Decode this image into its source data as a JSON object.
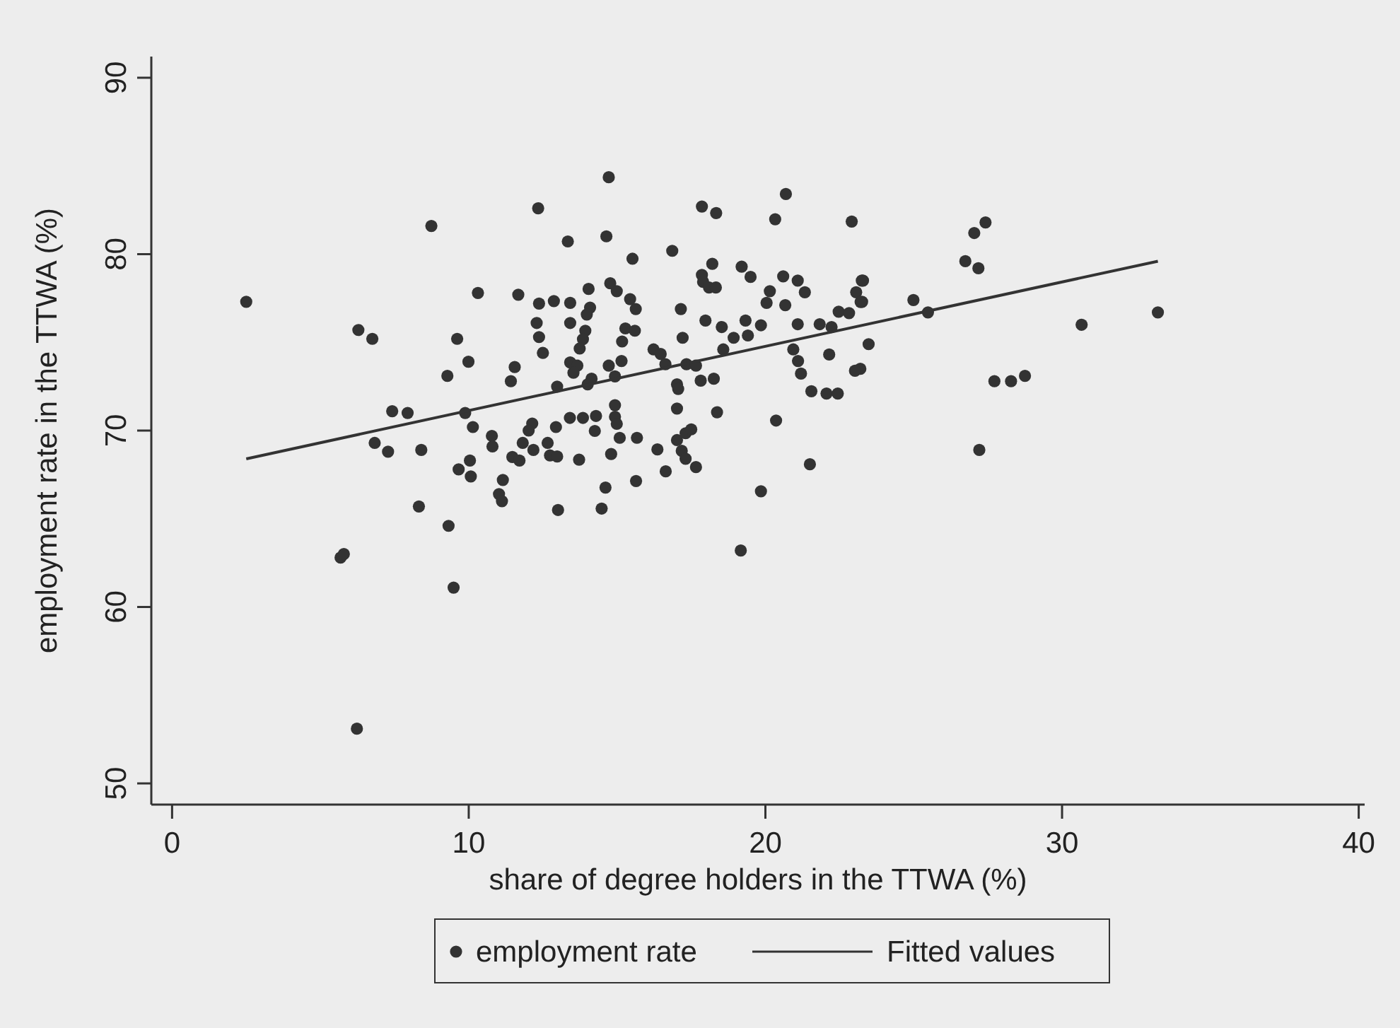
{
  "chart_data": {
    "type": "scatter",
    "xlabel": "share of degree holders in the TTWA (%)",
    "ylabel": "employment rate in the TTWA (%)",
    "xlim": [
      -0.7,
      40.2
    ],
    "ylim": [
      48.8,
      91.2
    ],
    "xticks": [
      0,
      10,
      20,
      30,
      40
    ],
    "yticks": [
      50,
      60,
      70,
      80,
      90
    ],
    "grid": false,
    "legend": "bottom",
    "series": [
      {
        "name": "employment rate",
        "marker": "circle",
        "color": "#333333",
        "x": [
          2.5,
          8.74,
          12.34,
          10.31,
          11.67,
          12.37,
          6.28,
          6.75,
          9.61,
          12.29,
          12.37,
          12.5,
          9.99,
          11.55,
          11.42,
          9.28,
          7.42,
          7.94,
          9.88,
          10.14,
          6.83,
          7.28,
          8.4,
          10.78,
          10.8,
          12.14,
          12.02,
          11.82,
          11.47,
          11.71,
          12.18,
          12.66,
          10.04,
          9.66,
          10.07,
          11.15,
          11.02,
          11.12,
          8.32,
          9.32,
          5.68,
          5.79,
          9.49,
          6.23,
          19.17,
          27.42,
          27.04,
          26.74,
          27.18,
          23.29,
          23.26,
          24.99,
          25.48,
          23.48,
          23.2,
          30.66,
          33.23,
          27.72,
          28.28,
          28.75,
          27.21,
          14.72,
          13.34,
          14.64,
          15.52,
          16.86,
          17.86,
          18.34,
          20.69,
          20.33,
          22.91,
          18.21,
          19.2,
          19.5,
          17.86,
          17.9,
          18.1,
          18.33,
          20.6,
          21.09,
          21.33,
          20.15,
          20.04,
          20.67,
          23.25,
          23.06,
          23.21,
          22.47,
          22.82,
          22.23,
          21.83,
          21.09,
          22.15,
          23.02,
          20.94,
          21.1,
          21.2,
          21.55,
          22.06,
          22.44,
          20.36,
          21.5,
          19.85,
          12.87,
          13.42,
          14.04,
          14.09,
          13.98,
          13.42,
          13.93,
          13.85,
          13.74,
          14.77,
          14.99,
          15.44,
          15.63,
          15.28,
          15.6,
          15.17,
          15.15,
          14.72,
          14.93,
          13.42,
          13.66,
          13.53,
          14.14,
          14.01,
          12.98,
          16.23,
          16.47,
          16.63,
          17.15,
          17.21,
          17.34,
          17.66,
          17.02,
          17.06,
          17.82,
          18.26,
          17.98,
          18.53,
          18.93,
          19.33,
          19.41,
          19.85,
          18.58,
          17.02,
          18.37,
          12.94,
          13.41,
          13.85,
          14.29,
          14.25,
          14.93,
          14.93,
          14.99,
          15.09,
          15.67,
          14.8,
          12.74,
          12.98,
          13.72,
          16.36,
          17.02,
          17.31,
          17.5,
          17.18,
          17.31,
          16.64,
          17.66,
          15.64,
          14.61,
          13.01,
          14.48
        ],
        "values": [
          77.3,
          81.6,
          82.6,
          77.8,
          77.7,
          77.2,
          75.7,
          75.2,
          75.2,
          76.1,
          75.3,
          74.4,
          73.9,
          73.6,
          72.8,
          73.1,
          71.1,
          71.0,
          71.0,
          70.2,
          69.3,
          68.8,
          68.9,
          69.7,
          69.1,
          70.4,
          70.0,
          69.3,
          68.5,
          68.3,
          68.9,
          69.3,
          68.3,
          67.8,
          67.4,
          67.2,
          66.4,
          66.0,
          65.7,
          64.6,
          62.8,
          63.0,
          61.1,
          53.1,
          63.2,
          81.8,
          81.2,
          79.6,
          79.2,
          78.5,
          77.3,
          77.4,
          76.7,
          74.9,
          73.5,
          76.0,
          76.7,
          72.8,
          72.8,
          73.1,
          68.9,
          84.36,
          80.72,
          81.01,
          79.74,
          80.19,
          82.7,
          82.33,
          83.41,
          81.98,
          81.85,
          79.45,
          79.29,
          78.71,
          78.82,
          78.43,
          78.11,
          78.11,
          78.74,
          78.5,
          77.84,
          77.9,
          77.24,
          77.11,
          78.5,
          77.84,
          77.29,
          76.74,
          76.66,
          75.87,
          76.03,
          76.03,
          74.31,
          73.39,
          74.6,
          73.94,
          73.23,
          72.23,
          72.1,
          72.1,
          70.57,
          68.09,
          66.56,
          77.34,
          77.24,
          78.03,
          76.97,
          76.58,
          76.1,
          75.66,
          75.18,
          74.65,
          78.35,
          77.9,
          77.45,
          76.89,
          75.79,
          75.66,
          75.05,
          73.94,
          73.68,
          73.07,
          73.86,
          73.68,
          73.28,
          72.94,
          72.62,
          72.49,
          74.6,
          74.34,
          73.76,
          76.89,
          75.26,
          73.76,
          73.68,
          72.62,
          72.36,
          72.83,
          72.94,
          76.24,
          75.87,
          75.26,
          76.24,
          75.39,
          75.97,
          74.6,
          71.25,
          71.04,
          70.2,
          70.72,
          70.72,
          70.83,
          69.98,
          71.44,
          70.78,
          70.38,
          69.59,
          69.59,
          68.67,
          68.59,
          68.53,
          68.35,
          68.93,
          69.46,
          69.85,
          70.07,
          68.85,
          68.4,
          67.69,
          67.93,
          67.14,
          66.77,
          65.5,
          65.58
        ]
      },
      {
        "name": "Fitted values",
        "type": "line",
        "color": "#333333",
        "line_style": "solid",
        "x": [
          2.5,
          33.23
        ],
        "values": [
          68.4,
          79.6
        ]
      }
    ]
  }
}
